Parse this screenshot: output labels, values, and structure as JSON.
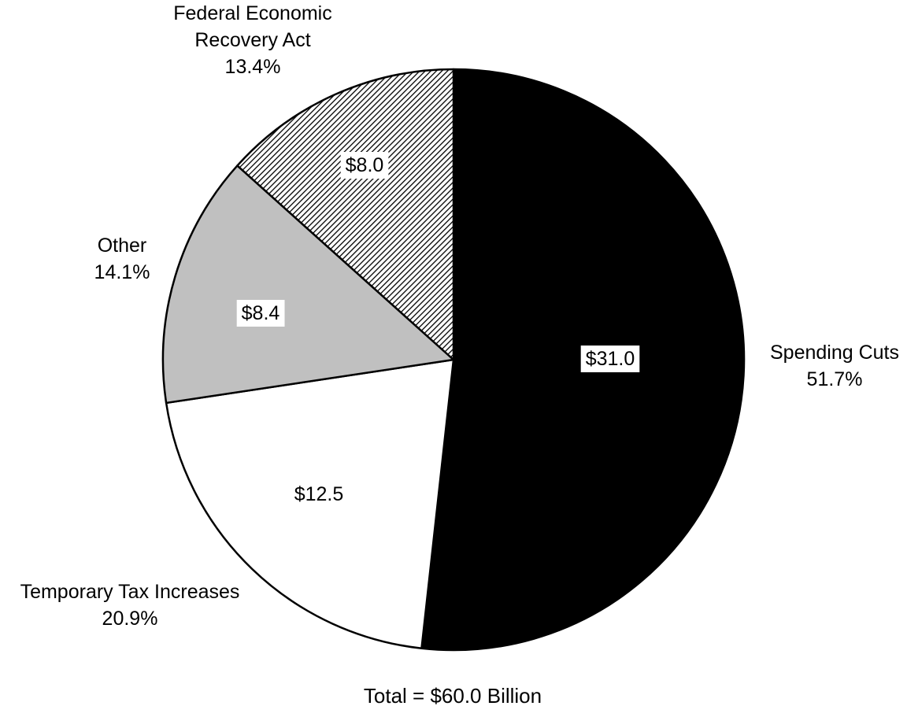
{
  "chart_data": {
    "type": "pie",
    "start_angle_deg": 0,
    "direction": "clockwise",
    "total_label": "Total = $60.0 Billion",
    "slices": [
      {
        "name_lines": [
          "Spending Cuts"
        ],
        "percent_label": "51.7%",
        "percent": 51.7,
        "value": 31.0,
        "value_label": "$31.0",
        "fill": "#000000",
        "pattern": "none",
        "value_box": true
      },
      {
        "name_lines": [
          "Temporary Tax Increases"
        ],
        "percent_label": "20.9%",
        "percent": 20.9,
        "value": 12.5,
        "value_label": "$12.5",
        "fill": "#ffffff",
        "pattern": "none",
        "value_box": false
      },
      {
        "name_lines": [
          "Other"
        ],
        "percent_label": "14.1%",
        "percent": 14.1,
        "value": 8.4,
        "value_label": "$8.4",
        "fill": "#c0c0c0",
        "pattern": "none",
        "value_box": true
      },
      {
        "name_lines": [
          "Federal Economic",
          "Recovery Act"
        ],
        "percent_label": "13.4%",
        "percent": 13.4,
        "value": 8.0,
        "value_label": "$8.0",
        "fill": "#ffffff",
        "pattern": "diagonal-hatch",
        "value_box": true
      }
    ]
  }
}
